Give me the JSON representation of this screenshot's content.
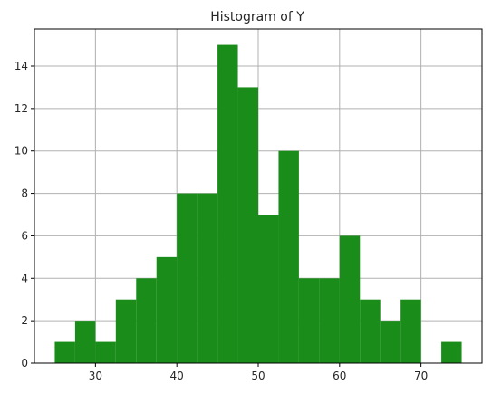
{
  "chart_data": {
    "type": "bar",
    "subtype": "histogram",
    "title": "Histogram of Y",
    "xlabel": "",
    "ylabel": "",
    "bin_edges": [
      25.0,
      27.5,
      30.0,
      32.5,
      35.0,
      37.5,
      40.0,
      42.5,
      45.0,
      47.5,
      50.0,
      52.5,
      55.0,
      57.5,
      60.0,
      62.5,
      65.0,
      67.5,
      70.0,
      72.5,
      75.0
    ],
    "counts": [
      1,
      2,
      1,
      3,
      4,
      5,
      8,
      8,
      15,
      13,
      7,
      10,
      4,
      4,
      6,
      3,
      2,
      3,
      0,
      1
    ],
    "xlim": [
      22.5,
      77.5
    ],
    "ylim": [
      0,
      15.75
    ],
    "xticks": [
      30,
      40,
      50,
      60,
      70
    ],
    "yticks": [
      0,
      2,
      4,
      6,
      8,
      10,
      12,
      14
    ],
    "grid": true,
    "bar_color": "#1a8c1a"
  }
}
